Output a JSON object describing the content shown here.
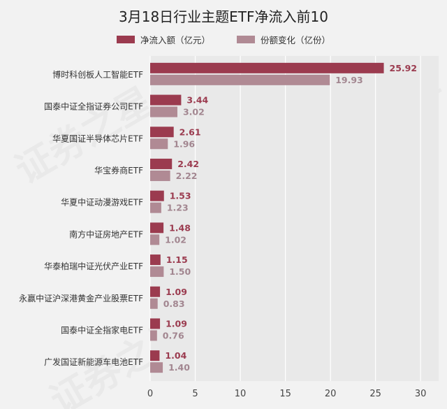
{
  "chart_data": {
    "type": "bar",
    "orientation": "horizontal",
    "title": "3月18日行业主题ETF净流入前10",
    "categories": [
      "博时科创板人工智能ETF",
      "国泰中证全指证券公司ETF",
      "华夏国证半导体芯片ETF",
      "华宝券商ETF",
      "华夏中证动漫游戏ETF",
      "南方中证房地产ETF",
      "华泰柏瑞中证光伏产业ETF",
      "永赢中证沪深港黄金产业股票ETF",
      "国泰中证全指家电ETF",
      "广发国证新能源车电池ETF"
    ],
    "series": [
      {
        "name": "净流入额（亿元）",
        "color": "#9b3b4f",
        "label_color": "#9b3b4f",
        "values": [
          25.92,
          3.44,
          2.61,
          2.42,
          1.53,
          1.48,
          1.15,
          1.09,
          1.09,
          1.04
        ]
      },
      {
        "name": "份额变化（亿份）",
        "color": "#b08a94",
        "label_color": "#a28690",
        "values": [
          19.93,
          3.02,
          1.96,
          2.22,
          1.23,
          1.02,
          1.5,
          0.83,
          0.76,
          1.4
        ]
      }
    ],
    "xlim": [
      0,
      32
    ],
    "xticks": [
      0,
      5,
      10,
      15,
      20,
      25,
      30
    ],
    "grid": true,
    "legend_position": "top"
  },
  "watermark": "证券之星"
}
